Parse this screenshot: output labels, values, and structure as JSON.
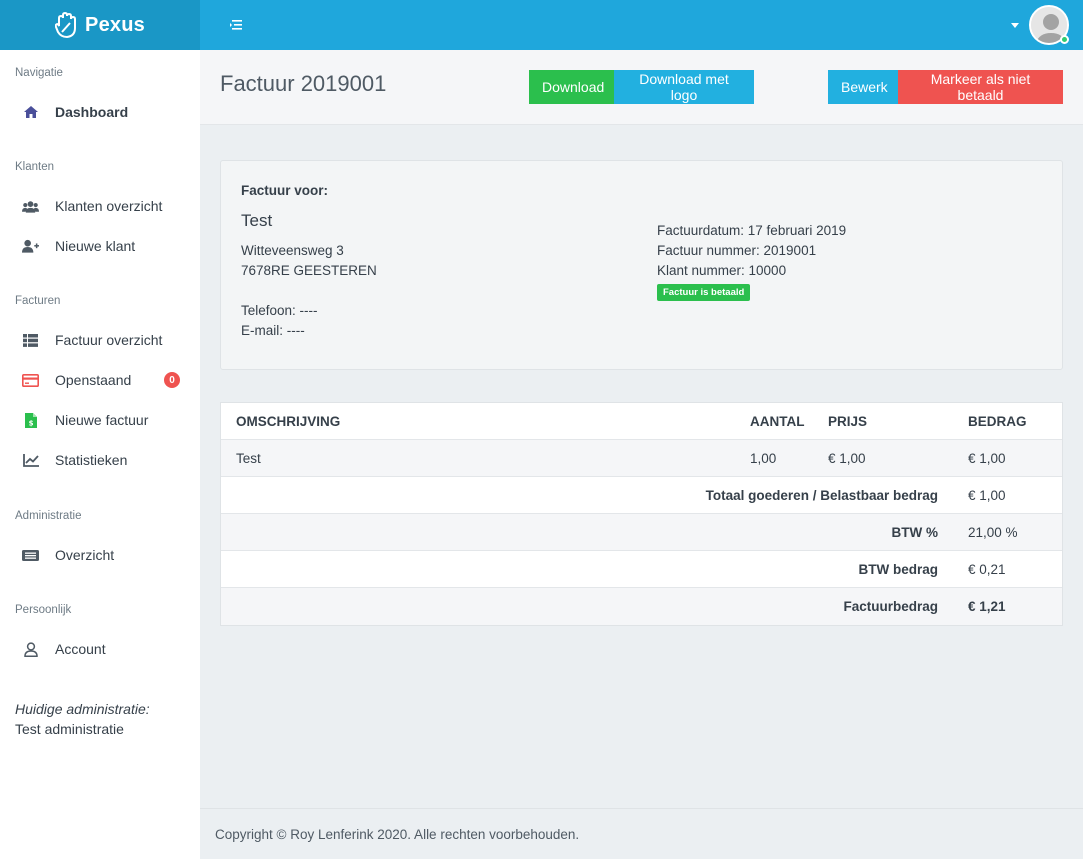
{
  "app": {
    "name": "Pexus"
  },
  "sidebar": {
    "sections": [
      {
        "label": "Navigatie"
      },
      {
        "label": "Klanten"
      },
      {
        "label": "Facturen"
      },
      {
        "label": "Administratie"
      },
      {
        "label": "Persoonlijk"
      }
    ],
    "items": [
      {
        "label": "Dashboard",
        "icon": "home-icon"
      },
      {
        "label": "Klanten overzicht",
        "icon": "users-icon"
      },
      {
        "label": "Nieuwe klant",
        "icon": "user-plus-icon"
      },
      {
        "label": "Factuur overzicht",
        "icon": "list-icon"
      },
      {
        "label": "Openstaand",
        "icon": "credit-card-icon",
        "badge": "0"
      },
      {
        "label": "Nieuwe factuur",
        "icon": "invoice-file-icon"
      },
      {
        "label": "Statistieken",
        "icon": "chart-line-icon"
      },
      {
        "label": "Overzicht",
        "icon": "newspaper-icon"
      },
      {
        "label": "Account",
        "icon": "user-icon"
      }
    ],
    "current_admin_label": "Huidige administratie:",
    "current_admin_value": "Test administratie"
  },
  "header": {
    "title": "Factuur 2019001",
    "buttons": {
      "download": "Download",
      "download_logo": "Download met logo",
      "edit": "Bewerk",
      "mark_unpaid": "Markeer als niet betaald"
    }
  },
  "invoice": {
    "for_label": "Factuur voor:",
    "client_name": "Test",
    "address_line1": "Witteveensweg 3",
    "address_line2": "7678RE GEESTEREN",
    "phone": "Telefoon: ----",
    "email": "E-mail: ----",
    "date": "Factuurdatum: 17 februari 2019",
    "number": "Factuur nummer: 2019001",
    "client_number": "Klant nummer: 10000",
    "status": "Factuur is betaald"
  },
  "table": {
    "headers": {
      "description": "OMSCHRIJVING",
      "quantity": "AANTAL",
      "price": "PRIJS",
      "amount": "BEDRAG"
    },
    "rows": [
      {
        "description": "Test",
        "quantity": "1,00",
        "price": "€ 1,00",
        "amount": "€ 1,00"
      }
    ],
    "totals": [
      {
        "label": "Totaal goederen / Belastbaar bedrag",
        "value": "€ 1,00"
      },
      {
        "label": "BTW %",
        "value": "21,00 %"
      },
      {
        "label": "BTW bedrag",
        "value": "€ 0,21"
      },
      {
        "label": "Factuurbedrag",
        "value": "€ 1,21"
      }
    ]
  },
  "footer": {
    "copyright": "Copyright © Roy Lenferink 2020. Alle rechten voorbehouden."
  },
  "colors": {
    "topbar": "#1fa7dc",
    "brand": "#1a97c6",
    "success": "#2bbf4d",
    "info": "#22b0e0",
    "danger": "#ef5350"
  }
}
